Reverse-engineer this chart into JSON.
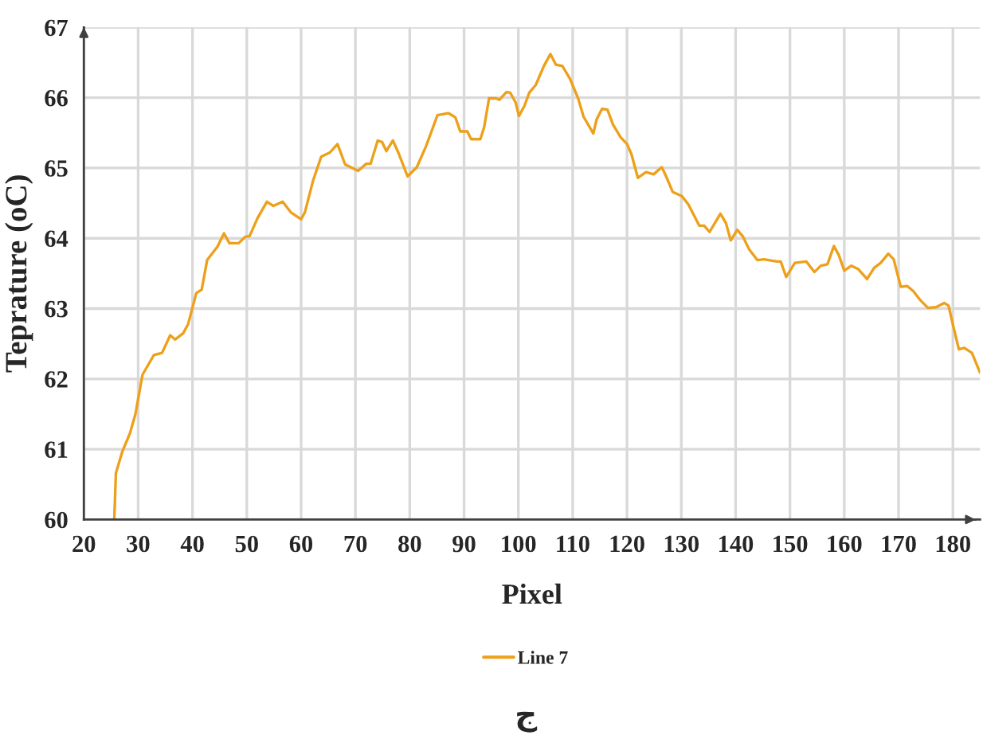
{
  "chart_data": {
    "type": "line",
    "xlabel": "Pixel",
    "ylabel": "Teprature (oC)",
    "annotations": [
      "ج"
    ],
    "series": [
      {
        "name": "Line 7",
        "color": "#eda01a",
        "x": [
          25.6,
          25.9,
          27.1,
          28.5,
          29.5,
          30.8,
          32.9,
          34.4,
          35.9,
          36.8,
          38.3,
          39.2,
          40.7,
          41.7,
          42.7,
          44.6,
          45.8,
          46.8,
          48.5,
          49.7,
          50.5,
          52.0,
          53.7,
          54.9,
          56.6,
          58.1,
          60.0,
          60.7,
          62.2,
          63.7,
          65.3,
          66.7,
          68.1,
          70.5,
          72.0,
          72.8,
          74.1,
          74.9,
          75.7,
          76.9,
          78.0,
          79.6,
          81.3,
          83.0,
          85.1,
          87.1,
          88.4,
          89.3,
          90.6,
          91.3,
          93.0,
          93.7,
          94.6,
          95.9,
          96.5,
          97.8,
          98.5,
          99.5,
          100.1,
          101.1,
          102.0,
          103.2,
          104.7,
          105.9,
          106.9,
          108.1,
          109.5,
          111.0,
          112.0,
          113.8,
          114.4,
          115.4,
          116.4,
          117.4,
          118.8,
          120.0,
          120.8,
          122.0,
          123.5,
          124.9,
          126.4,
          127.1,
          128.4,
          130.1,
          131.3,
          133.3,
          134.2,
          135.2,
          137.2,
          138.2,
          139.1,
          140.3,
          141.3,
          142.5,
          144.0,
          145.2,
          147.6,
          148.3,
          149.3,
          150.9,
          153.0,
          154.5,
          155.7,
          156.9,
          158.1,
          159.0,
          160.0,
          161.3,
          162.6,
          164.2,
          165.5,
          166.7,
          168.1,
          169.1,
          170.4,
          171.6,
          172.7,
          174.0,
          175.4,
          176.9,
          178.4,
          179.2,
          180.1,
          181.1,
          182.1,
          183.5,
          185.0
        ],
        "values": [
          60.0,
          60.66,
          60.97,
          61.23,
          61.5,
          62.06,
          62.34,
          62.37,
          62.62,
          62.56,
          62.65,
          62.78,
          63.22,
          63.27,
          63.69,
          63.88,
          64.07,
          63.93,
          63.93,
          64.02,
          64.03,
          64.29,
          64.52,
          64.46,
          64.52,
          64.37,
          64.27,
          64.37,
          64.82,
          65.16,
          65.22,
          65.34,
          65.05,
          64.96,
          65.06,
          65.06,
          65.39,
          65.37,
          65.24,
          65.39,
          65.2,
          64.88,
          65.01,
          65.31,
          65.75,
          65.78,
          65.72,
          65.52,
          65.52,
          65.41,
          65.41,
          65.58,
          65.99,
          65.99,
          65.97,
          66.08,
          66.07,
          65.93,
          65.74,
          65.88,
          66.07,
          66.18,
          66.45,
          66.62,
          66.47,
          66.45,
          66.27,
          65.99,
          65.73,
          65.49,
          65.69,
          65.84,
          65.83,
          65.62,
          65.44,
          65.34,
          65.2,
          64.86,
          64.94,
          64.91,
          65.01,
          64.9,
          64.66,
          64.6,
          64.48,
          64.18,
          64.18,
          64.09,
          64.35,
          64.22,
          63.97,
          64.12,
          64.03,
          63.84,
          63.69,
          63.7,
          63.67,
          63.67,
          63.45,
          63.65,
          63.67,
          63.52,
          63.61,
          63.63,
          63.89,
          63.76,
          63.54,
          63.61,
          63.56,
          63.42,
          63.58,
          63.65,
          63.78,
          63.7,
          63.31,
          63.32,
          63.25,
          63.12,
          63.01,
          63.02,
          63.08,
          63.04,
          62.74,
          62.42,
          62.44,
          62.37,
          62.09
        ]
      }
    ],
    "xlim": [
      20,
      185
    ],
    "xticks": [
      20,
      30,
      40,
      50,
      60,
      70,
      80,
      90,
      100,
      110,
      120,
      130,
      140,
      150,
      160,
      170,
      180
    ],
    "ylim": [
      60,
      67
    ],
    "yticks": [
      60,
      61,
      62,
      63,
      64,
      65,
      66,
      67
    ],
    "grid": true,
    "legend": "bottom"
  }
}
